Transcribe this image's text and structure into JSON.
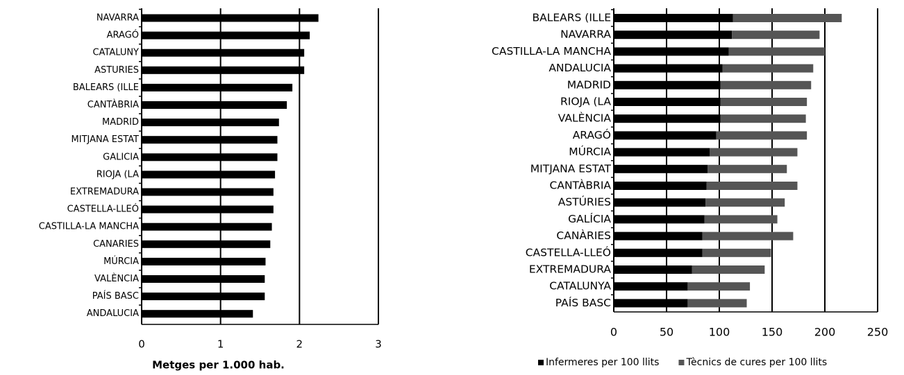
{
  "chart_data": [
    {
      "type": "bar",
      "orientation": "horizontal",
      "categories": [
        "NAVARRA",
        "ARAGÓ",
        "CATALUNY",
        "ASTURIES",
        "BALEARS (ILLE",
        "CANTÀBRIA",
        "MADRID",
        "MITJANA ESTAT",
        "GALICIA",
        "RIOJA (LA",
        "EXTREMADURA",
        "CASTELLA-LLEÓ",
        "CASTILLA-LA MANCHA",
        "CANARIES",
        "MÚRCIA",
        "VALÈNCIA",
        "PAÍS BASC",
        "ANDALUCIA"
      ],
      "values": [
        2.24,
        2.13,
        2.06,
        2.06,
        1.91,
        1.84,
        1.74,
        1.72,
        1.72,
        1.69,
        1.67,
        1.67,
        1.65,
        1.63,
        1.57,
        1.56,
        1.56,
        1.41
      ],
      "color": "#000000",
      "xlabel": "Metges per 1.000 hab.",
      "xlim": [
        0,
        3
      ],
      "xticks": [
        0,
        1,
        2,
        3
      ],
      "grid": true
    },
    {
      "type": "stacked_bar",
      "orientation": "horizontal",
      "categories": [
        "BALEARS (ILLE",
        "NAVARRA",
        "CASTILLA-LA MANCHA",
        "ANDALUCIA",
        "MADRID",
        "RIOJA (LA",
        "VALÈNCIA",
        "ARAGÓ",
        "MÚRCIA",
        "MITJANA ESTAT",
        "CANTÀBRIA",
        "ASTÚRIES",
        "GALÍCIA",
        "CANÀRIES",
        "CASTELLA-LLEÓ",
        "EXTREMADURA",
        "CATALUNYA",
        "PAÍS BASC"
      ],
      "series": [
        {
          "name": "Infermeres per 100 llits",
          "color": "#000000",
          "values": [
            113,
            112,
            109,
            103,
            101,
            101,
            101,
            97,
            91,
            89,
            88,
            87,
            86,
            84,
            84,
            74,
            70,
            70
          ]
        },
        {
          "name": "Tècnics de cures per 100 llits",
          "color": "#555555",
          "values": [
            103,
            83,
            91,
            86,
            86,
            82,
            81,
            86,
            83,
            75,
            86,
            75,
            69,
            86,
            65,
            69,
            59,
            56
          ]
        }
      ],
      "xlim": [
        0,
        250
      ],
      "xticks": [
        0,
        50,
        100,
        150,
        200,
        250
      ],
      "grid": true,
      "legend": "bottom"
    }
  ]
}
